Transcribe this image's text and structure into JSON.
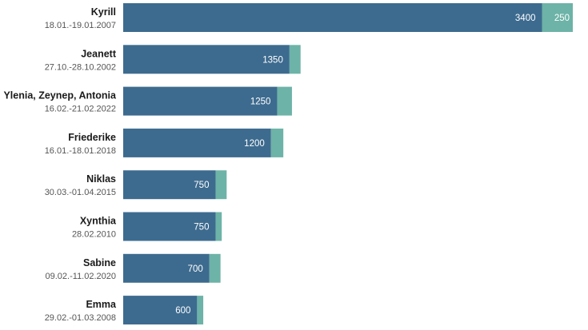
{
  "chart_data": {
    "type": "bar",
    "orientation": "horizontal",
    "stacked": true,
    "categories": [
      "Kyrill",
      "Jeanett",
      "Ylenia, Zeynep, Antonia",
      "Friederike",
      "Niklas",
      "Xynthia",
      "Sabine",
      "Emma"
    ],
    "dates": [
      "18.01.-19.01.2007",
      "27.10.-28.10.2002",
      "16.02.-21.02.2022",
      "16.01.-18.01.2018",
      "30.03.-01.04.2015",
      "28.02.2010",
      "09.02.-11.02.2020",
      "29.02.-01.03.2008"
    ],
    "series": [
      {
        "values": [
          3400,
          1350,
          1250,
          1200,
          750,
          750,
          700,
          600
        ],
        "color": "#3d6b8f"
      },
      {
        "values": [
          250,
          90,
          120,
          100,
          90,
          50,
          90,
          50
        ],
        "color": "#6db3a7"
      }
    ],
    "value_labels": [
      [
        "3400",
        "1350",
        "1250",
        "1200",
        "750",
        "750",
        "700",
        "600"
      ],
      [
        "250",
        "",
        "",
        "",
        "",
        "",
        "",
        ""
      ]
    ],
    "title": "",
    "xlabel": "",
    "ylabel": "",
    "xlim": [
      0,
      3650
    ],
    "grid": false,
    "legend": "none"
  }
}
